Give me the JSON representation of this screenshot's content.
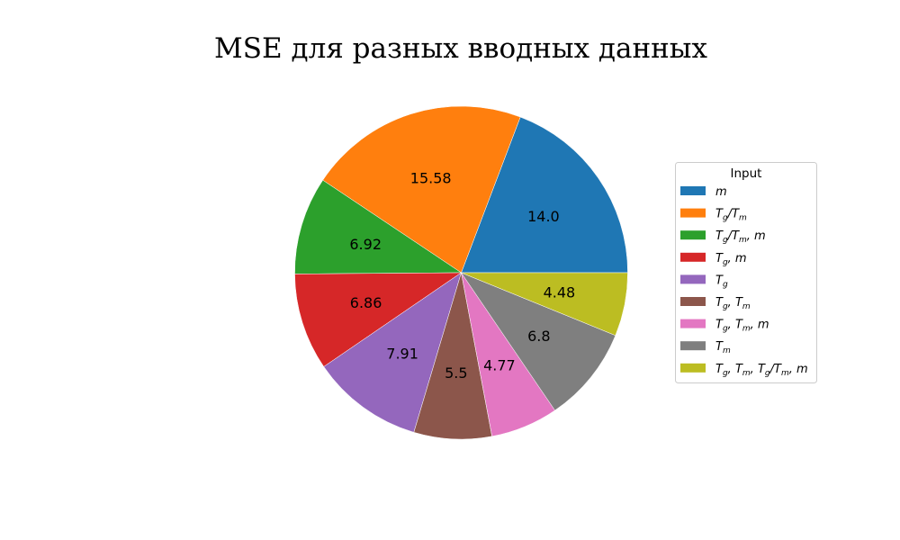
{
  "chart_data": {
    "type": "pie",
    "title": "MSE для разных вводных данных",
    "legend_title": "Input",
    "legend_position": "right",
    "start_angle_deg": 0,
    "direction": "counterclockwise",
    "slices": [
      {
        "label": "m",
        "value": 14.0,
        "display": "14.0",
        "color": "#1f77b4"
      },
      {
        "label": "T_g/T_m",
        "value": 15.58,
        "display": "15.58",
        "color": "#ff7f0e"
      },
      {
        "label": "T_g/T_m, m",
        "value": 6.92,
        "display": "6.92",
        "color": "#2ca02c"
      },
      {
        "label": "T_g, m",
        "value": 6.86,
        "display": "6.86",
        "color": "#d62728"
      },
      {
        "label": "T_g",
        "value": 7.91,
        "display": "7.91",
        "color": "#9467bd"
      },
      {
        "label": "T_g, T_m",
        "value": 5.5,
        "display": "5.5",
        "color": "#8c564b"
      },
      {
        "label": "T_g, T_m, m",
        "value": 4.77,
        "display": "4.77",
        "color": "#e377c2"
      },
      {
        "label": "T_m",
        "value": 6.8,
        "display": "6.8",
        "color": "#7f7f7f"
      },
      {
        "label": "T_g, T_m, T_g/T_m, m",
        "value": 4.48,
        "display": "4.48",
        "color": "#bcbd22"
      }
    ]
  }
}
